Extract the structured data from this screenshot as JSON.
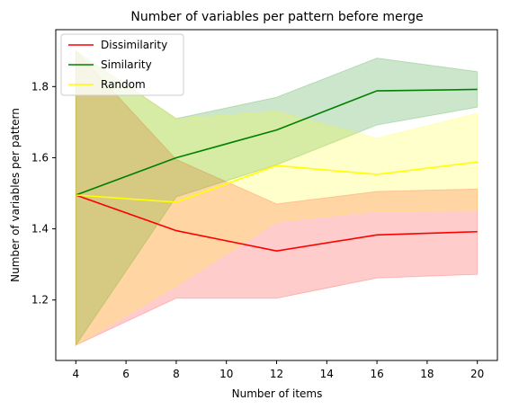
{
  "chart_data": {
    "type": "line",
    "title": "Number of variables per pattern before merge",
    "xlabel": "Number of items",
    "ylabel": "Number of variables per pattern",
    "x": [
      4,
      8,
      12,
      16,
      20
    ],
    "xlim": [
      3.2,
      20.8
    ],
    "ylim": [
      1.03,
      1.96
    ],
    "xticks": [
      4,
      6,
      8,
      10,
      12,
      14,
      16,
      18,
      20
    ],
    "yticks": [
      1.2,
      1.4,
      1.6,
      1.8
    ],
    "ytick_labels": [
      "1.2",
      "1.4",
      "1.6",
      "1.8"
    ],
    "legend_position": "top-left",
    "grid": false,
    "series": [
      {
        "name": "Dissimilarity",
        "color": "#ff0000",
        "values": [
          1.495,
          1.395,
          1.338,
          1.383,
          1.392
        ],
        "lower": [
          1.073,
          1.205,
          1.205,
          1.262,
          1.272
        ],
        "upper": [
          1.9,
          1.595,
          1.47,
          1.505,
          1.512
        ]
      },
      {
        "name": "Similarity",
        "color": "#008000",
        "values": [
          1.495,
          1.6,
          1.678,
          1.788,
          1.792
        ],
        "lower": [
          1.073,
          1.49,
          1.58,
          1.692,
          1.742
        ],
        "upper": [
          1.9,
          1.71,
          1.77,
          1.88,
          1.842
        ]
      },
      {
        "name": "Random",
        "color": "#ffff00",
        "values": [
          1.495,
          1.475,
          1.578,
          1.553,
          1.588
        ],
        "lower": [
          1.073,
          1.24,
          1.42,
          1.45,
          1.452
        ],
        "upper": [
          1.9,
          1.71,
          1.73,
          1.655,
          1.725
        ]
      }
    ]
  }
}
